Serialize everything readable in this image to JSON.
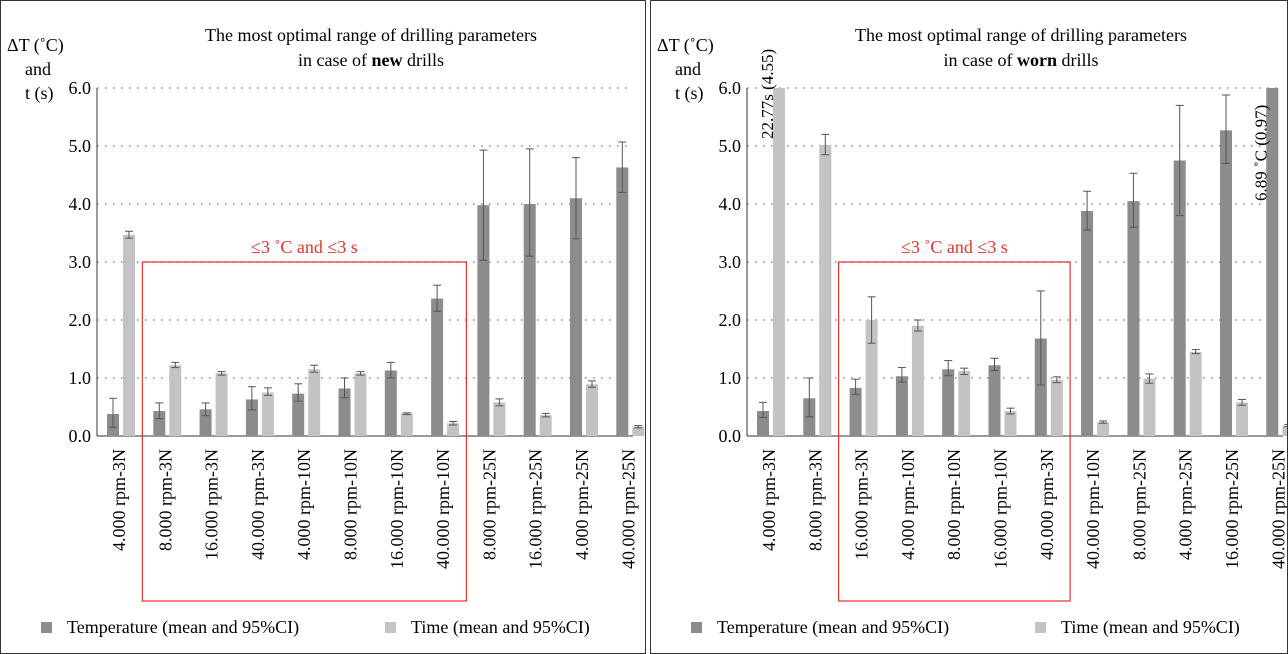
{
  "colors": {
    "temperature": "#8c8c8f",
    "time": "#c3c3c6",
    "highlight": "#e0342f",
    "grid": "#888888"
  },
  "chart_data": [
    {
      "type": "bar",
      "title_line1": "The most optimal range of drilling parameters",
      "title_line2_prefix": "in case of ",
      "title_line2_bold": "new",
      "title_line2_suffix": " drills",
      "ylabel_line1": "ΔT (˚C)",
      "ylabel_line2": "and",
      "ylabel_line3": "t (s)",
      "ylim": [
        0,
        6
      ],
      "yticks": [
        "0.0",
        "1.0",
        "2.0",
        "3.0",
        "4.0",
        "5.0",
        "6.0"
      ],
      "grid": "horizontal dotted",
      "categories": [
        "4.000 rpm-3N",
        "8.000 rpm-3N",
        "16.000 rpm-3N",
        "40.000 rpm-3N",
        "4.000 rpm-10N",
        "8.000 rpm-10N",
        "16.000 rpm-10N",
        "40.000 rpm-10N",
        "8.000 rpm-25N",
        "16.000 rpm-25N",
        "4.000 rpm-25N",
        "40.000 rpm-25N"
      ],
      "series": [
        {
          "name": "Temperature (mean and 95%CI)",
          "values": [
            0.38,
            0.43,
            0.46,
            0.63,
            0.73,
            0.82,
            1.13,
            2.37,
            3.98,
            4.0,
            4.1,
            4.63
          ],
          "ci_low": [
            0.15,
            0.3,
            0.35,
            0.45,
            0.6,
            0.66,
            1.0,
            2.15,
            3.03,
            3.1,
            3.4,
            4.2
          ],
          "ci_high": [
            0.65,
            0.57,
            0.57,
            0.85,
            0.9,
            1.0,
            1.27,
            2.6,
            4.93,
            4.95,
            4.8,
            5.07
          ]
        },
        {
          "name": "Time (mean and 95%CI)",
          "values": [
            3.47,
            1.22,
            1.08,
            0.75,
            1.15,
            1.08,
            0.39,
            0.22,
            0.58,
            0.36,
            0.89,
            0.16
          ],
          "ci_low": [
            3.41,
            1.18,
            1.05,
            0.7,
            1.1,
            1.05,
            0.37,
            0.19,
            0.52,
            0.33,
            0.84,
            0.14
          ],
          "ci_high": [
            3.53,
            1.27,
            1.11,
            0.83,
            1.22,
            1.11,
            0.4,
            0.25,
            0.64,
            0.39,
            0.95,
            0.18
          ]
        }
      ],
      "highlight_label": "≤3 ˚C and ≤3 s",
      "highlight_range": {
        "from_index": 1,
        "to_index": 7,
        "ymax": 3
      },
      "annotations": [],
      "legend_position": "bottom"
    },
    {
      "type": "bar",
      "title_line1": "The most optimal range of drilling parameters",
      "title_line2_prefix": "in case of ",
      "title_line2_bold": "worn",
      "title_line2_suffix": " drills",
      "ylabel_line1": "ΔT (˚C)",
      "ylabel_line2": "and",
      "ylabel_line3": "t (s)",
      "ylim": [
        0,
        6
      ],
      "yticks": [
        "0.0",
        "1.0",
        "2.0",
        "3.0",
        "4.0",
        "5.0",
        "6.0"
      ],
      "grid": "horizontal dotted",
      "categories": [
        "4.000 rpm-3N",
        "8.000 rpm-3N",
        "16.000 rpm-3N",
        "4.000 rpm-10N",
        "8.000 rpm-10N",
        "16.000 rpm-10N",
        "40.000 rpm-3N",
        "40.000 rpm-10N",
        "8.000 rpm-25N",
        "4.000 rpm-25N",
        "16.000 rpm-25N",
        "40.000 rpm-25N"
      ],
      "series": [
        {
          "name": "Temperature (mean and 95%CI)",
          "values": [
            0.43,
            0.65,
            0.83,
            1.03,
            1.15,
            1.22,
            1.68,
            3.88,
            4.05,
            4.75,
            5.27,
            6.0
          ],
          "ci_low": [
            0.32,
            0.33,
            0.72,
            0.93,
            1.04,
            1.13,
            0.88,
            3.55,
            3.6,
            3.8,
            4.7,
            6.0
          ],
          "ci_high": [
            0.58,
            1.0,
            0.98,
            1.18,
            1.3,
            1.34,
            2.5,
            4.22,
            4.53,
            5.7,
            5.88,
            6.0
          ]
        },
        {
          "name": "Time (mean and 95%CI)",
          "values": [
            6.0,
            5.02,
            2.0,
            1.9,
            1.12,
            0.43,
            0.97,
            0.24,
            0.99,
            1.45,
            0.58,
            0.18
          ],
          "ci_low": [
            6.0,
            4.85,
            1.6,
            1.81,
            1.06,
            0.38,
            0.92,
            0.22,
            0.91,
            1.42,
            0.53,
            0.16
          ],
          "ci_high": [
            6.0,
            5.2,
            2.4,
            2.0,
            1.17,
            0.48,
            1.02,
            0.26,
            1.07,
            1.49,
            0.63,
            0.2
          ]
        }
      ],
      "highlight_label": "≤3 ˚C and ≤3 s",
      "highlight_range": {
        "from_index": 2,
        "to_index": 6,
        "ymax": 3
      },
      "annotations": [
        {
          "text": "22.77s (4.55)",
          "category_index": 0,
          "series": "time"
        },
        {
          "text": "6.89 ˚C (0.97)",
          "category_index": 11,
          "series": "temperature"
        }
      ],
      "legend_position": "bottom"
    }
  ]
}
